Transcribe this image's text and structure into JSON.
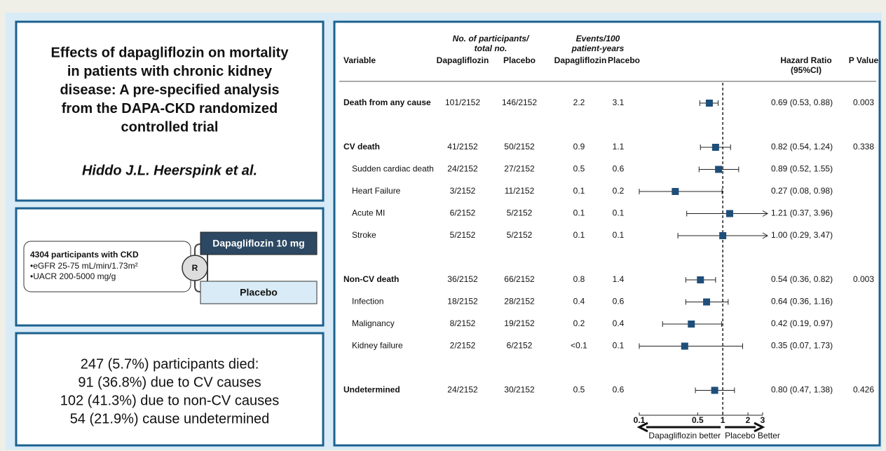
{
  "title_panel": {
    "title_lines": [
      "Effects of dapagliflozin on mortality",
      "in patients with chronic kidney",
      "disease: A pre-specified analysis",
      "from the DAPA-CKD randomized",
      "controlled trial"
    ],
    "authors": "Hiddo J.L. Heerspink et al."
  },
  "design": {
    "population": "4304 participants with CKD",
    "criteria": [
      "eGFR 25-75 mL/min/1.73m²",
      "UACR 200-5000 mg/g"
    ],
    "randomization": "R",
    "arms": [
      "Dapagliflozin 10 mg",
      "Placebo"
    ]
  },
  "outcome_summary": {
    "lines": [
      "247 (5.7%) participants died:",
      "91 (36.8%) due to CV causes",
      "102 (41.3%) due to non-CV causes",
      "54 (21.9%) cause undetermined"
    ]
  },
  "chart_data": {
    "type": "forest",
    "participants_header": [
      "No. of participants/",
      "total no."
    ],
    "events_header": [
      "Events/100",
      "patient-years"
    ],
    "columns": [
      "Variable",
      "Dapagliflozin",
      "Placebo",
      "Dapagliflozin",
      "Placebo",
      "Hazard Ratio",
      "P Value"
    ],
    "hr_subheader": "(95%CI)",
    "rows": [
      {
        "variable": "Death from any cause",
        "dapa_n": "101/2152",
        "placebo_n": "146/2152",
        "dapa_rate": 2.2,
        "placebo_rate": 3.1,
        "hr": 0.69,
        "lower": 0.53,
        "upper": 0.88,
        "hr_label": "0.69 (0.53, 0.88)",
        "p": 0.003
      },
      {
        "variable": "CV death",
        "dapa_n": "41/2152",
        "placebo_n": "50/2152",
        "dapa_rate": 0.9,
        "placebo_rate": 1.1,
        "hr": 0.82,
        "lower": 0.54,
        "upper": 1.24,
        "hr_label": "0.82 (0.54, 1.24)",
        "p": 0.338
      },
      {
        "variable": "Sudden cardiac death",
        "dapa_n": "24/2152",
        "placebo_n": "27/2152",
        "dapa_rate": 0.5,
        "placebo_rate": 0.6,
        "hr": 0.89,
        "lower": 0.52,
        "upper": 1.55,
        "hr_label": "0.89 (0.52, 1.55)"
      },
      {
        "variable": "Heart Failure",
        "dapa_n": "3/2152",
        "placebo_n": "11/2152",
        "dapa_rate": 0.1,
        "placebo_rate": 0.2,
        "hr": 0.27,
        "lower": 0.08,
        "upper": 0.98,
        "hr_label": "0.27  (0.08, 0.98)"
      },
      {
        "variable": "Acute MI",
        "dapa_n": "6/2152",
        "placebo_n": "5/2152",
        "dapa_rate": 0.1,
        "placebo_rate": 0.1,
        "hr": 1.21,
        "lower": 0.37,
        "upper": 3.96,
        "hr_label": "1.21 (0.37, 3.96)"
      },
      {
        "variable": "Stroke",
        "dapa_n": "5/2152",
        "placebo_n": "5/2152",
        "dapa_rate": 0.1,
        "placebo_rate": 0.1,
        "hr": 1.0,
        "lower": 0.29,
        "upper": 3.47,
        "hr_label": "1.00 (0.29, 3.47)"
      },
      {
        "variable": "Non-CV death",
        "dapa_n": "36/2152",
        "placebo_n": "66/2152",
        "dapa_rate": 0.8,
        "placebo_rate": 1.4,
        "hr": 0.54,
        "lower": 0.36,
        "upper": 0.82,
        "hr_label": "0.54 (0.36, 0.82)",
        "p": 0.003
      },
      {
        "variable": "Infection",
        "dapa_n": "18/2152",
        "placebo_n": "28/2152",
        "dapa_rate": 0.4,
        "placebo_rate": 0.6,
        "hr": 0.64,
        "lower": 0.36,
        "upper": 1.16,
        "hr_label": "0.64 (0.36, 1.16)"
      },
      {
        "variable": "Malignancy",
        "dapa_n": "8/2152",
        "placebo_n": "19/2152",
        "dapa_rate": 0.2,
        "placebo_rate": 0.4,
        "hr": 0.42,
        "lower": 0.19,
        "upper": 0.97,
        "hr_label": "0.42 (0.19, 0.97)"
      },
      {
        "variable": "Kidney failure",
        "dapa_n": "2/2152",
        "placebo_n": "6/2152",
        "dapa_rate": "<0.1",
        "placebo_rate": 0.1,
        "hr": 0.35,
        "lower": 0.07,
        "upper": 1.73,
        "hr_label": "0.35 (0.07, 1.73)"
      },
      {
        "variable": "Undetermined",
        "dapa_n": "24/2152",
        "placebo_n": "30/2152",
        "dapa_rate": 0.5,
        "placebo_rate": 0.6,
        "hr": 0.8,
        "lower": 0.47,
        "upper": 1.38,
        "hr_label": "0.80 (0.47, 1.38)",
        "p": 0.426
      }
    ],
    "log_scale": true,
    "xlim": [
      0.1,
      3
    ],
    "xticks": [
      0.1,
      0.5,
      1,
      2,
      3
    ],
    "reference_line": 1,
    "x_label_left": "Dapagliflozin better",
    "x_label_right": "Placebo Better",
    "color": "#1f4e79"
  }
}
